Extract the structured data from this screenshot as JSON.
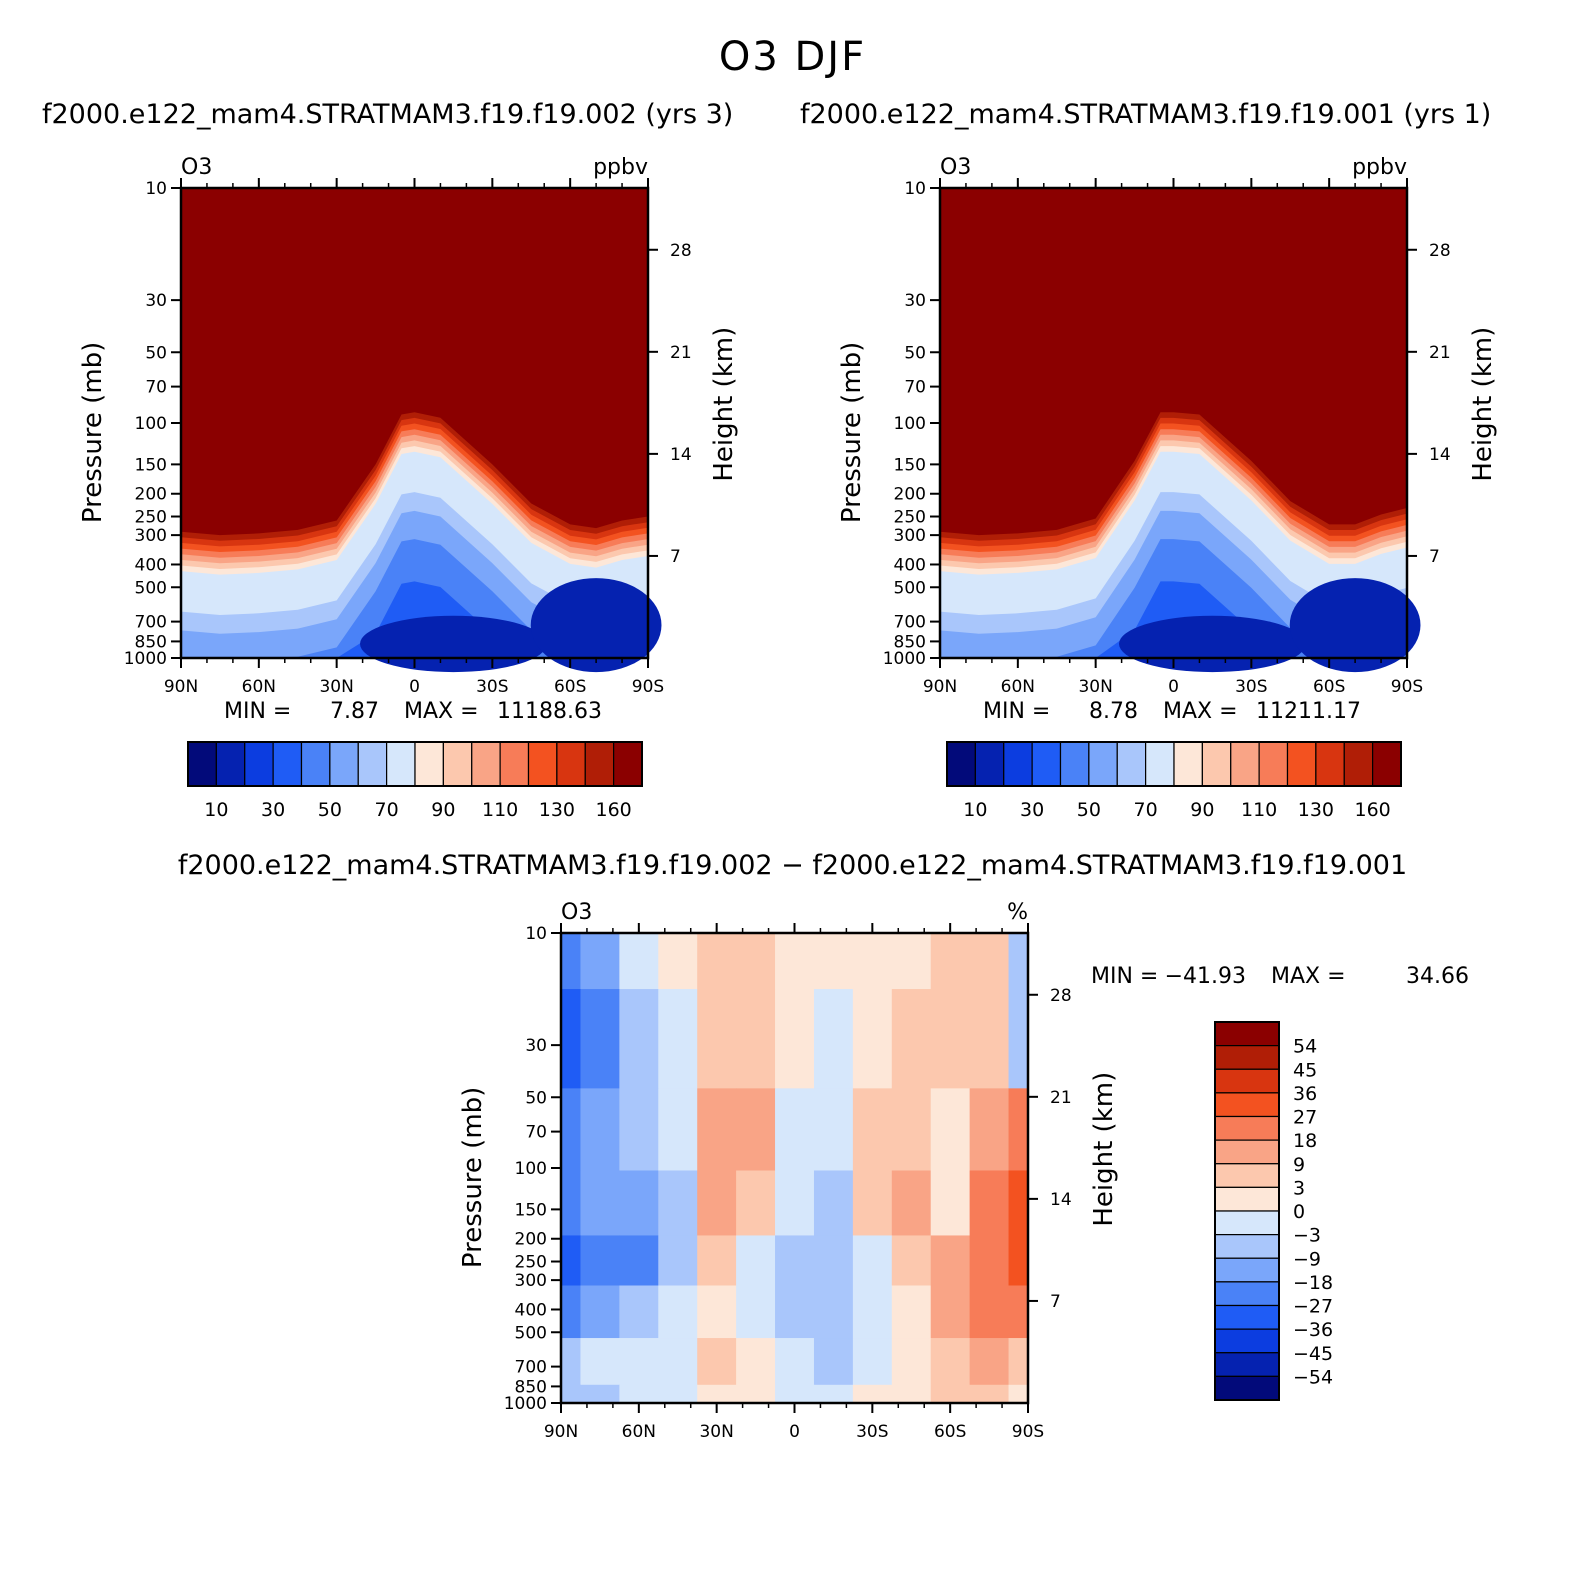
{
  "figure": {
    "title": "O3 DJF",
    "subtitle_left": "f2000.e122_mam4.STRATMAM3.f19.f19.002 (yrs 3)",
    "subtitle_right": "f2000.e122_mam4.STRATMAM3.f19.f19.001 (yrs 1)",
    "subtitle_diff": "f2000.e122_mam4.STRATMAM3.f19.f19.002 − f2000.e122_mam4.STRATMAM3.f19.f19.001"
  },
  "colors": {
    "ppbv_scale": [
      "#020a7a",
      "#0522b0",
      "#0c3de0",
      "#1f5cf5",
      "#4a82f7",
      "#7aa6fa",
      "#a9c6fb",
      "#d6e7fb",
      "#fde7d8",
      "#fcc8ae",
      "#f9a486",
      "#f77c58",
      "#f35220",
      "#d83510",
      "#b01e06",
      "#8b0000"
    ],
    "diff_scale": [
      "#020a7a",
      "#0522b0",
      "#0c3de0",
      "#1f5cf5",
      "#4a82f7",
      "#7aa6fa",
      "#a9c6fb",
      "#d6e7fb",
      "#fde7d8",
      "#fcc8ae",
      "#f9a486",
      "#f77c58",
      "#f35220",
      "#d83510",
      "#b01e06",
      "#8b0000"
    ]
  },
  "chart_data": [
    {
      "type": "heatmap",
      "id": "panel-left",
      "variable": "O3",
      "units": "ppbv",
      "xlabel": "",
      "ylabel": "Pressure (mb)",
      "y2label": "Height (km)",
      "x_ticks": [
        "90N",
        "60N",
        "30N",
        "0",
        "30S",
        "60S",
        "90S"
      ],
      "y_ticks": [
        "10",
        "30",
        "50",
        "70",
        "100",
        "150",
        "200",
        "250",
        "300",
        "400",
        "500",
        "700",
        "850",
        "1000"
      ],
      "y2_ticks": [
        "28",
        "21",
        "14",
        "7"
      ],
      "min_label": "MIN =",
      "min_value": "7.87",
      "max_label": "MAX =",
      "max_value": "11188.63",
      "colorbar_labels": [
        "10",
        "30",
        "50",
        "70",
        "90",
        "110",
        "130",
        "160"
      ],
      "tropopause_mb": [
        290,
        300,
        295,
        285,
        260,
        150,
        92,
        90,
        95,
        150,
        220,
        270,
        280,
        260,
        250
      ],
      "layers_lat": [
        "90N",
        "75N",
        "60N",
        "45N",
        "30N",
        "15N",
        "5N",
        "0",
        "10S",
        "30S",
        "45S",
        "60S",
        "70S",
        "80S",
        "90S"
      ]
    },
    {
      "type": "heatmap",
      "id": "panel-right",
      "variable": "O3",
      "units": "ppbv",
      "xlabel": "",
      "ylabel": "Pressure (mb)",
      "y2label": "Height (km)",
      "x_ticks": [
        "90N",
        "60N",
        "30N",
        "0",
        "30S",
        "60S",
        "90S"
      ],
      "y_ticks": [
        "10",
        "30",
        "50",
        "70",
        "100",
        "150",
        "200",
        "250",
        "300",
        "400",
        "500",
        "700",
        "850",
        "1000"
      ],
      "y2_ticks": [
        "28",
        "21",
        "14",
        "7"
      ],
      "min_label": "MIN =",
      "min_value": "8.78",
      "max_label": "MAX =",
      "max_value": "11211.17",
      "colorbar_labels": [
        "10",
        "30",
        "50",
        "70",
        "90",
        "110",
        "130",
        "160"
      ],
      "tropopause_mb": [
        290,
        300,
        295,
        285,
        255,
        145,
        90,
        90,
        92,
        145,
        215,
        270,
        270,
        245,
        230
      ],
      "layers_lat": [
        "90N",
        "75N",
        "60N",
        "45N",
        "30N",
        "15N",
        "5N",
        "0",
        "10S",
        "30S",
        "45S",
        "60S",
        "70S",
        "80S",
        "90S"
      ]
    },
    {
      "type": "heatmap",
      "id": "panel-diff",
      "variable": "O3",
      "units": "%",
      "xlabel": "",
      "ylabel": "Pressure (mb)",
      "y2label": "Height (km)",
      "x_ticks": [
        "90N",
        "60N",
        "30N",
        "0",
        "30S",
        "60S",
        "90S"
      ],
      "y_ticks": [
        "10",
        "30",
        "50",
        "70",
        "100",
        "150",
        "200",
        "250",
        "300",
        "400",
        "500",
        "700",
        "850",
        "1000"
      ],
      "y2_ticks": [
        "28",
        "21",
        "14",
        "7"
      ],
      "min_label": "MIN =",
      "min_value": "−41.93",
      "max_label": "MAX =",
      "max_value": "34.66",
      "colorbar_labels": [
        "54",
        "45",
        "36",
        "27",
        "18",
        "9",
        "3",
        "0",
        "−3",
        "−9",
        "−18",
        "−27",
        "−36",
        "−45",
        "−54"
      ],
      "grid_lats": [
        "90N",
        "75N",
        "60N",
        "45N",
        "30N",
        "15N",
        "0",
        "15S",
        "30S",
        "45S",
        "60S",
        "75S",
        "90S"
      ],
      "grid_levels_mb": [
        "10",
        "30",
        "70",
        "150",
        "250",
        "400",
        "700",
        "1000"
      ],
      "grid_values": [
        [
          -27,
          -18,
          -3,
          0,
          3,
          3,
          0,
          0,
          0,
          0,
          3,
          3,
          -9
        ],
        [
          -36,
          -27,
          -9,
          -3,
          3,
          3,
          0,
          -3,
          0,
          3,
          3,
          3,
          -9
        ],
        [
          -27,
          -18,
          -9,
          -3,
          9,
          9,
          -3,
          -3,
          3,
          3,
          0,
          9,
          18
        ],
        [
          -27,
          -18,
          -18,
          -9,
          9,
          3,
          -3,
          -9,
          3,
          9,
          0,
          18,
          27
        ],
        [
          -36,
          -27,
          -27,
          -9,
          3,
          -3,
          -9,
          -9,
          -3,
          3,
          9,
          18,
          27
        ],
        [
          -27,
          -18,
          -9,
          -3,
          0,
          -3,
          -9,
          -9,
          -3,
          0,
          9,
          18,
          18
        ],
        [
          -9,
          -3,
          -3,
          -3,
          3,
          0,
          -3,
          -9,
          -3,
          0,
          3,
          9,
          3
        ],
        [
          -9,
          -9,
          -3,
          -3,
          0,
          0,
          -3,
          -3,
          0,
          0,
          3,
          3,
          0
        ]
      ]
    }
  ]
}
